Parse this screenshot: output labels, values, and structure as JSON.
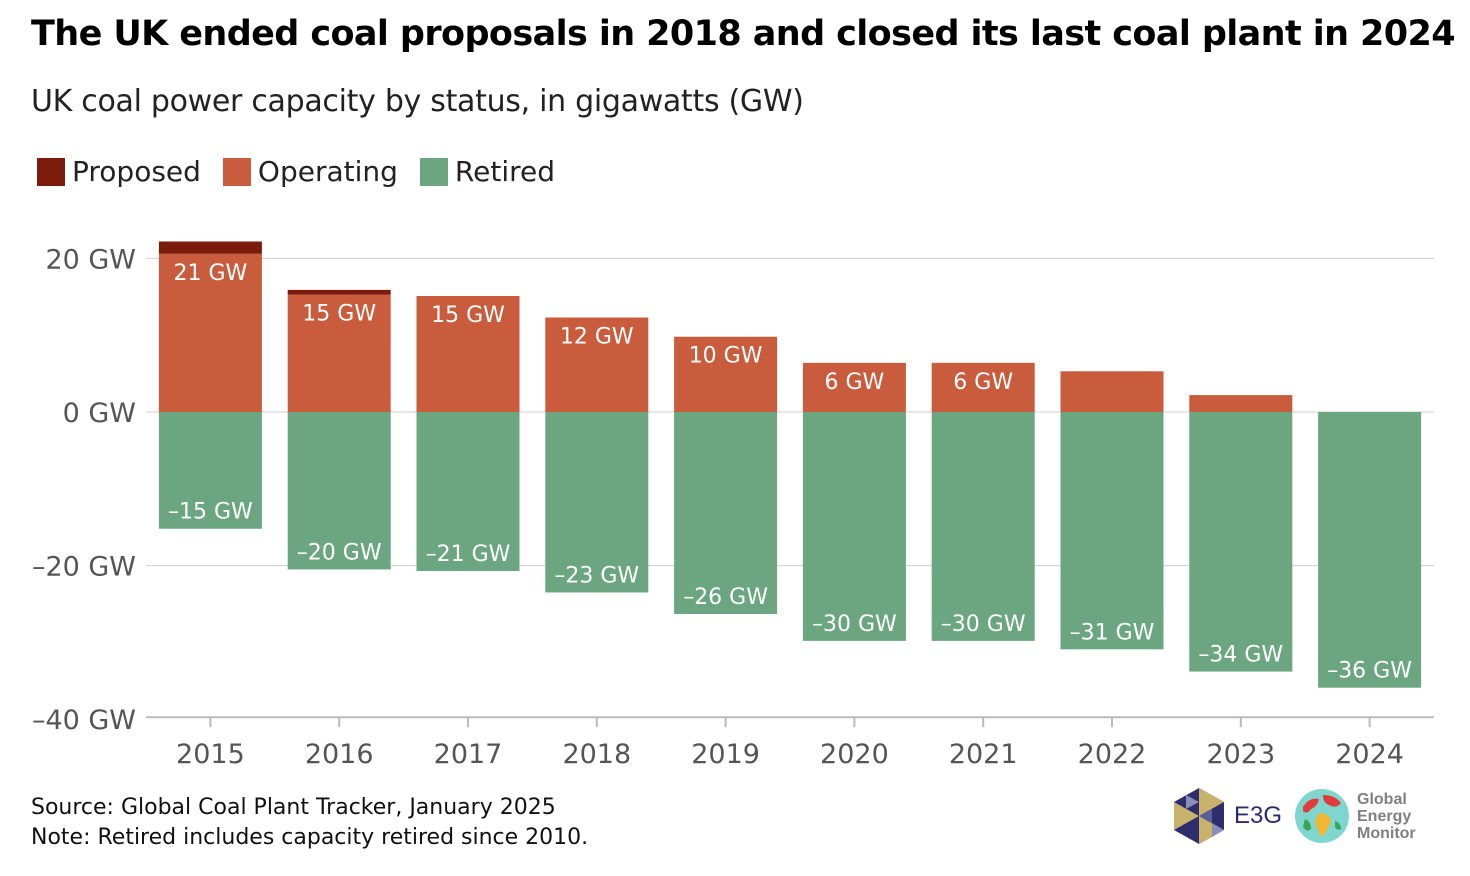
{
  "header": {
    "title": "The UK ended coal proposals in 2018 and closed its last coal plant in 2024",
    "subtitle": "UK coal power capacity by status, in gigawatts (GW)"
  },
  "legend": [
    {
      "label": "Proposed",
      "color": "#7a1b0c"
    },
    {
      "label": "Operating",
      "color": "#c85c3c"
    },
    {
      "label": "Retired",
      "color": "#6ba681"
    }
  ],
  "chart_data": {
    "type": "bar",
    "stacked": true,
    "categories": [
      "2015",
      "2016",
      "2017",
      "2018",
      "2019",
      "2020",
      "2021",
      "2022",
      "2023",
      "2024"
    ],
    "series": [
      {
        "name": "Proposed",
        "color": "#7a1b0c",
        "values": [
          1.6,
          0.6,
          0,
          0,
          0,
          0,
          0,
          0,
          0,
          0
        ]
      },
      {
        "name": "Operating",
        "color": "#c85c3c",
        "values": [
          20.6,
          15.3,
          15.1,
          12.3,
          9.8,
          6.4,
          6.4,
          5.3,
          2.2,
          0
        ]
      },
      {
        "name": "Retired",
        "color": "#6ba681",
        "values": [
          -15.2,
          -20.5,
          -20.7,
          -23.5,
          -26.3,
          -29.8,
          -29.8,
          -30.9,
          -33.8,
          -35.9
        ]
      }
    ],
    "data_labels": {
      "Operating": [
        "21 GW",
        "15 GW",
        "15 GW",
        "12 GW",
        "10 GW",
        "6 GW",
        "6 GW",
        "",
        "",
        ""
      ],
      "Retired": [
        "–15 GW",
        "–20 GW",
        "–21 GW",
        "–23 GW",
        "–26 GW",
        "–30 GW",
        "–30 GW",
        "–31 GW",
        "–34 GW",
        "–36 GW"
      ]
    },
    "y_ticks": [
      20,
      0,
      -20,
      -40
    ],
    "y_tick_labels": [
      "20 GW",
      "0 GW",
      "–20 GW",
      "–40 GW"
    ],
    "ylim": [
      -40,
      22
    ],
    "grid": true
  },
  "footer": {
    "source": "Source: Global Coal Plant Tracker, January 2025",
    "note": "Note: Retired includes capacity retired since 2010."
  },
  "logos": {
    "e3g": "E3G",
    "gem_line1": "Global",
    "gem_line2": "Energy",
    "gem_line3": "Monitor"
  }
}
